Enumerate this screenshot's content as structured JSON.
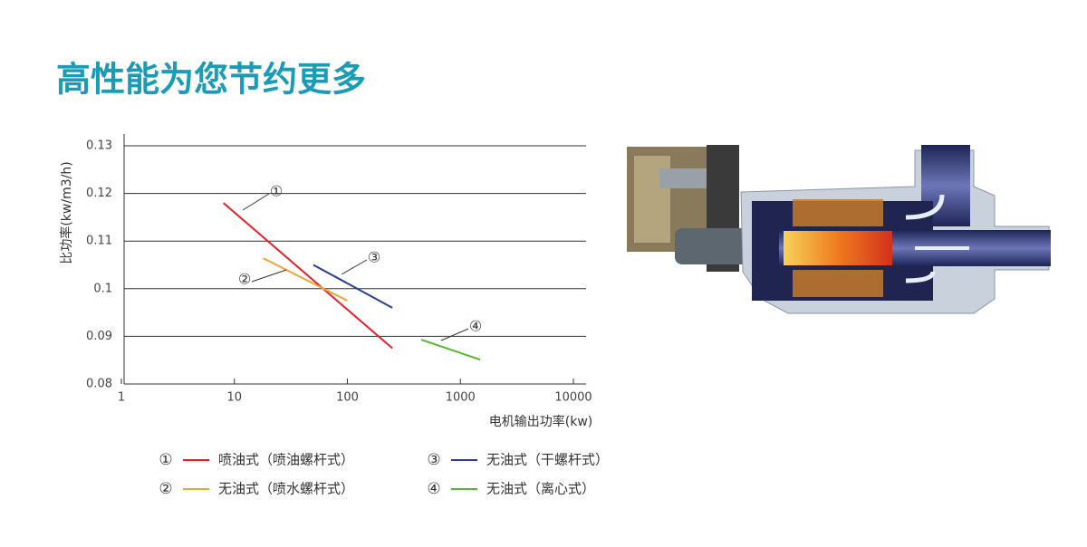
{
  "chart_data": {
    "type": "line",
    "title": "高性能为您节约更多",
    "y_label": "比功率(kw/m3/h)",
    "x_label": "电机输出功率(kw)",
    "xscale": "log",
    "xlim": [
      1,
      10000
    ],
    "xticks": [
      1,
      10,
      100,
      1000,
      10000
    ],
    "ylim": [
      0.08,
      0.13
    ],
    "yticks": [
      0.08,
      0.09,
      0.1,
      0.11,
      0.12,
      0.13
    ],
    "grid": true,
    "series": [
      {
        "label": "①",
        "name": "喷油式（喷油螺杆式）",
        "color": "#e5202a",
        "x": [
          8,
          250
        ],
        "values": [
          0.118,
          0.0875
        ]
      },
      {
        "label": "②",
        "name": "无油式（喷水螺杆式）",
        "color": "#f0a62e",
        "x": [
          18,
          100
        ],
        "values": [
          0.1064,
          0.0975
        ]
      },
      {
        "label": "③",
        "name": "无油式（干螺杆式）",
        "color": "#2b3f8f",
        "x": [
          50,
          250
        ],
        "values": [
          0.105,
          0.096
        ]
      },
      {
        "label": "④",
        "name": "无油式（离心式）",
        "color": "#5ab435",
        "x": [
          450,
          1500
        ],
        "values": [
          0.0893,
          0.0851
        ]
      }
    ]
  }
}
